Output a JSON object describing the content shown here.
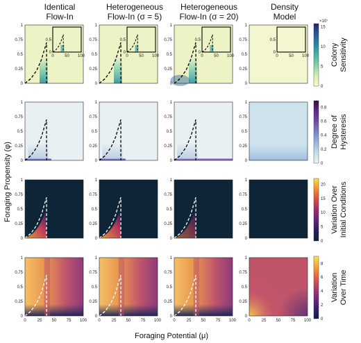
{
  "column_titles": [
    [
      "Identical",
      "Flow-In"
    ],
    [
      "Heterogeneous",
      "Flow-In (σ = 5)"
    ],
    [
      "Heterogeneous",
      "Flow-In (σ = 20)"
    ],
    [
      "Density",
      "Model"
    ]
  ],
  "xlabel": "Foraging Potential (μ)",
  "ylabel": "Foraging Propensity (φ)",
  "xticks": [
    "0",
    "25",
    "50",
    "75",
    "100"
  ],
  "yticks": [
    "0",
    "0.25",
    "0.5",
    "0.75",
    "1"
  ],
  "inset_xticks": [
    "0",
    "50",
    "100"
  ],
  "inset_yticks": [
    "0",
    "0.5"
  ],
  "rows": [
    {
      "colorbar_label": [
        "Colony",
        "Sensitivity"
      ],
      "colorbar_ticks": [
        "0",
        "5",
        "10",
        "15"
      ],
      "exponent": "×10⁷",
      "cmap": [
        "#fdfdc9",
        "#d6efb3",
        "#88d0a6",
        "#4bb1a8",
        "#2c87a0",
        "#27589a",
        "#2a2461"
      ]
    },
    {
      "colorbar_label": [
        "Degree of",
        "Hysteresis"
      ],
      "colorbar_ticks": [
        "0",
        "0.2",
        "0.4",
        "0.6",
        "0.8"
      ],
      "cmap": [
        "#eef3f5",
        "#c7dde8",
        "#9cb5d8",
        "#7a84c4",
        "#6b4ea8",
        "#5c2a84",
        "#3d0b45"
      ]
    },
    {
      "colorbar_label": [
        "Variation Over",
        "Initial Conditions"
      ],
      "colorbar_ticks": [
        "0",
        "5",
        "10",
        "15",
        "20"
      ],
      "cmap": [
        "#0c2436",
        "#2b1f55",
        "#61247a",
        "#9e2c6b",
        "#d84f43",
        "#f3912e",
        "#f8e24f"
      ]
    },
    {
      "colorbar_label": [
        "Variation",
        "Over Time"
      ],
      "colorbar_ticks": [
        "0",
        "2",
        "4",
        "6",
        "8"
      ],
      "cmap": [
        "#0c1e48",
        "#3b1f6a",
        "#762a7b",
        "#b23d6d",
        "#e56245",
        "#f6a23a",
        "#f7e45b"
      ]
    }
  ],
  "chart_data": [
    {
      "type": "heatmap",
      "description_metric": "Colony Sensitivity",
      "columns": [
        "Identical Flow-In",
        "Heterogeneous Flow-In (σ = 5)",
        "Heterogeneous Flow-In (σ = 20)",
        "Density Model"
      ],
      "xlim": [
        0,
        100
      ],
      "ylim": [
        0,
        1
      ],
      "clim": [
        0,
        17
      ],
      "inset": {
        "xlim": [
          0,
          100
        ],
        "ylim": [
          0,
          1
        ]
      },
      "boundary_curve": {
        "x": [
          0,
          10,
          20,
          28,
          34,
          37,
          37
        ],
        "y": [
          0,
          0.08,
          0.22,
          0.4,
          0.6,
          0.7,
          0.0
        ]
      }
    },
    {
      "type": "heatmap",
      "description_metric": "Degree of Hysteresis",
      "xlim": [
        0,
        100
      ],
      "ylim": [
        0,
        1
      ],
      "clim": [
        0,
        0.9
      ]
    },
    {
      "type": "heatmap",
      "description_metric": "Variation Over Initial Conditions",
      "xlim": [
        0,
        100
      ],
      "ylim": [
        0,
        1
      ],
      "clim": [
        0,
        22
      ]
    },
    {
      "type": "heatmap",
      "description_metric": "Variation Over Time",
      "xlim": [
        0,
        100
      ],
      "ylim": [
        0,
        1
      ],
      "clim": [
        0,
        9
      ]
    }
  ]
}
